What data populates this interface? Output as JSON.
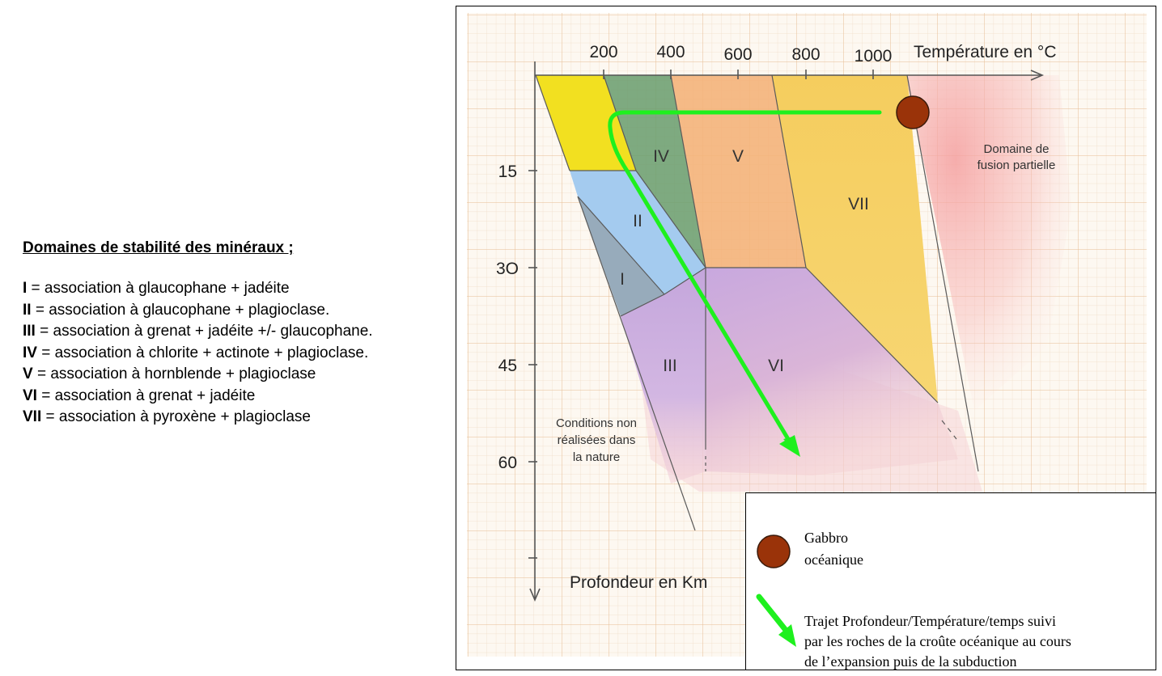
{
  "legend": {
    "title": "Domaines de stabilité des minéraux ;",
    "items": [
      {
        "num": "I",
        "text": " = association à glaucophane + jadéite"
      },
      {
        "num": "II",
        "text": " = association à glaucophane + plagioclase."
      },
      {
        "num": "III",
        "text": " = association à grenat + jadéite +/- glaucophane."
      },
      {
        "num": "IV",
        "text": " = association à chlorite + actinote + plagioclase."
      },
      {
        "num": "V",
        "text": " = association à hornblende + plagioclase"
      },
      {
        "num": "VI",
        "text": " = association à grenat + jadéite"
      },
      {
        "num": "VII",
        "text": " = association à pyroxène + plagioclase"
      }
    ]
  },
  "diagram": {
    "x_axis_title": "Température en °C",
    "x_ticks": [
      "200",
      "400",
      "600",
      "800",
      "1000"
    ],
    "y_axis_title": "Profondeur en Km",
    "y_ticks": [
      "15",
      "3O",
      "45",
      "60"
    ],
    "domains": {
      "I": "I",
      "II": "II",
      "III": "III",
      "IV": "IV",
      "V": "V",
      "VI": "VI",
      "VII": "VII"
    },
    "fusion_label": [
      "Domaine de",
      "fusion partielle"
    ],
    "no_nature_label": [
      "Conditions non",
      "réalisées dans",
      "la nature"
    ],
    "colors": {
      "yellow": "#f3e21a",
      "green": "#6b9e6a",
      "orange": "#f5b376",
      "gold": "#f6cf5a",
      "blue": "#9fc8ee",
      "grey_blue": "#93a8b8",
      "lilac": "#c4a8dc",
      "pink": "#f3c6cd",
      "fusion": "#f5a7a7",
      "path": "#1ef01e",
      "gabbro": "#9a3309",
      "grid": "#e9c9a6"
    }
  },
  "symbol_legend": {
    "gabbro": [
      "Gabbro",
      "océanique"
    ],
    "path": [
      "Trajet Profondeur/Température/temps suivi",
      "par les roches de la croûte océanique au cours",
      "de l’expansion puis de la subduction"
    ]
  }
}
